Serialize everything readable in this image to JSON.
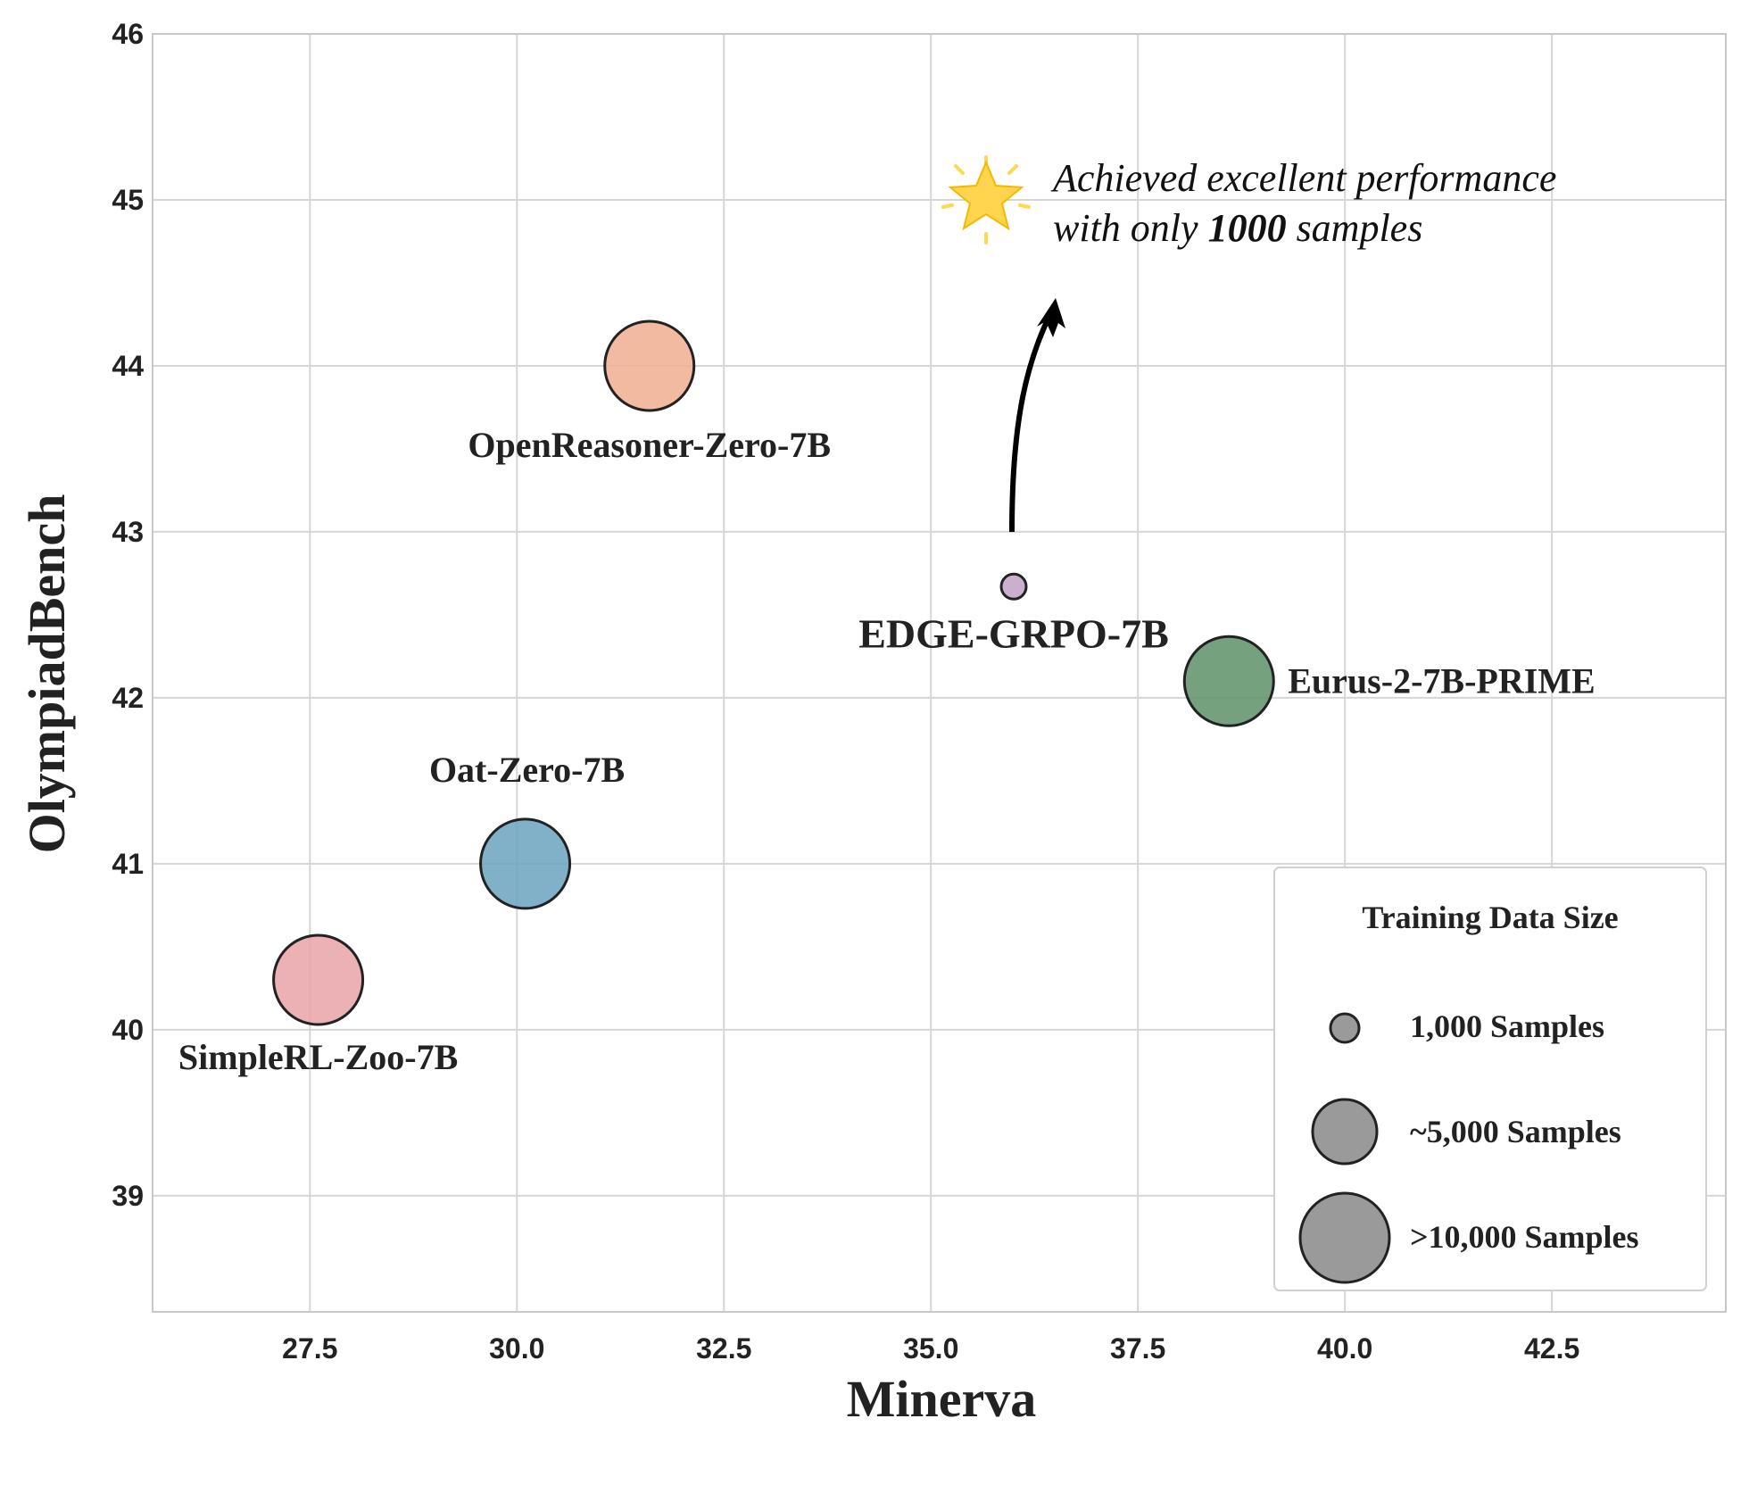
{
  "chart_data": {
    "type": "scatter",
    "xlabel": "Minerva",
    "ylabel": "OlympiadBench",
    "xlim": [
      25.6,
      44.6
    ],
    "ylim": [
      38.3,
      46.0
    ],
    "xticks": [
      "27.5",
      "30.0",
      "32.5",
      "35.0",
      "37.5",
      "40.0",
      "42.5"
    ],
    "yticks": [
      "39",
      "40",
      "41",
      "42",
      "43",
      "44",
      "45",
      "46"
    ],
    "grid": true,
    "points": [
      {
        "name": "SimpleRL-Zoo-7B",
        "x": 27.6,
        "y": 40.3,
        "size": ">10,000 Samples",
        "color": "#e8a3a8"
      },
      {
        "name": "Oat-Zero-7B",
        "x": 30.1,
        "y": 41.0,
        "size": ">10,000 Samples",
        "color": "#6aa3bf"
      },
      {
        "name": "OpenReasoner-Zero-7B",
        "x": 31.6,
        "y": 44.0,
        "size": ">10,000 Samples",
        "color": "#f0ae91"
      },
      {
        "name": "EDGE-GRPO-7B",
        "x": 36.0,
        "y": 42.67,
        "size": "1,000 Samples",
        "color": "#c2a2c6"
      },
      {
        "name": "Eurus-2-7B-PRIME",
        "x": 38.6,
        "y": 42.1,
        "size": ">10,000 Samples",
        "color": "#5e9168"
      }
    ],
    "legend": {
      "title": "Training Data Size",
      "position": "lower-right",
      "entries": [
        "1,000 Samples",
        "~5,000 Samples",
        ">10,000 Samples"
      ]
    },
    "annotation": {
      "line1": "Achieved excellent performance",
      "line2_prefix": "with only ",
      "line2_number": "1000",
      "line2_suffix": " samples",
      "icon": "star-icon"
    }
  }
}
